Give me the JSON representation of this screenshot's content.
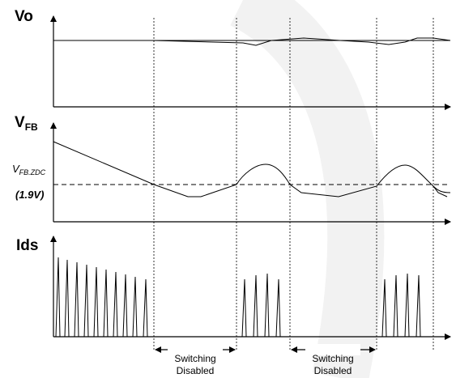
{
  "diagram": {
    "panels": [
      {
        "label_main": "Vo",
        "label_sub": ""
      },
      {
        "label_main": "V",
        "label_sub": "FB"
      },
      {
        "label_main": "Ids",
        "label_sub": ""
      }
    ],
    "reference_level": {
      "label_main": "V",
      "label_sub": "FB.ZDC",
      "value": "(1.9V)"
    },
    "annotations": [
      {
        "line1": "Switching",
        "line2": "Disabled"
      },
      {
        "line1": "Switching",
        "line2": "Disabled"
      }
    ]
  }
}
